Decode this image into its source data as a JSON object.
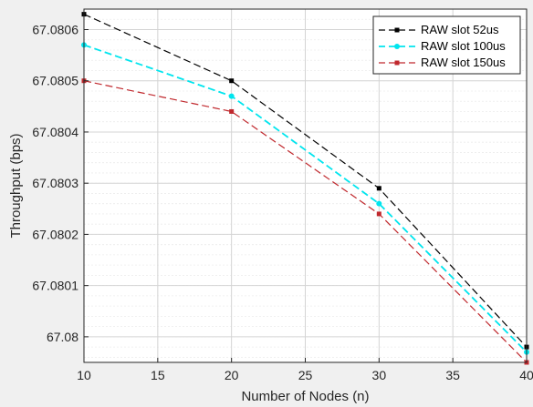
{
  "chart_data": {
    "type": "line",
    "xlabel": "Number of Nodes (n)",
    "ylabel": "Throughput (bps)",
    "x": [
      10,
      20,
      30,
      40
    ],
    "xlim": [
      10,
      40
    ],
    "ylim": [
      67.07995,
      67.08064
    ],
    "xticks": [
      "10",
      "15",
      "20",
      "25",
      "30",
      "35",
      "40"
    ],
    "xtick_values": [
      10,
      15,
      20,
      25,
      30,
      35,
      40
    ],
    "yticks": [
      "67.08",
      "67.0801",
      "67.0802",
      "67.0803",
      "67.0804",
      "67.0805",
      "67.0806"
    ],
    "ytick_values": [
      67.08,
      67.0801,
      67.0802,
      67.0803,
      67.0804,
      67.0805,
      67.0806
    ],
    "grid": true,
    "minor_grid_y": true,
    "legend_position": "top-right",
    "series": [
      {
        "name": "RAW slot 52us",
        "values": [
          67.08063,
          67.0805,
          67.08029,
          67.07998
        ],
        "color": "#000000",
        "marker": "square"
      },
      {
        "name": "RAW slot 100us",
        "values": [
          67.08057,
          67.08047,
          67.08026,
          67.07997
        ],
        "color": "#00e5ee",
        "marker": "circle"
      },
      {
        "name": "RAW slot 150us",
        "values": [
          67.0805,
          67.08044,
          67.08024,
          67.07995
        ],
        "color": "#c0282d",
        "marker": "square"
      }
    ]
  }
}
